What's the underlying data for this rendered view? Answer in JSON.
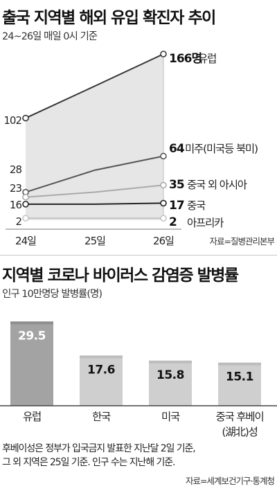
{
  "chart_data": [
    {
      "type": "line",
      "title": "출국 지역별 해외 유입 확진자 추이",
      "subtitle": "24~26일 매일 0시 기준",
      "source": "자료=질병관리본부",
      "categories": [
        "24일",
        "25일",
        "26일"
      ],
      "ylim": [
        0,
        175
      ],
      "series": [
        {
          "name": "유럽",
          "values": [
            102,
            134,
            166
          ],
          "start_label": "102",
          "end_label": "166명",
          "color": "#333333",
          "area": true,
          "area_color": "#e6e6e6"
        },
        {
          "name": "미주(미국등 북미)",
          "values": [
            28,
            50,
            64
          ],
          "start_label": "28",
          "end_label": "64",
          "color": "#555555"
        },
        {
          "name": "중국 외 아시아",
          "values": [
            23,
            28,
            35
          ],
          "start_label": "23",
          "end_label": "35",
          "color": "#aaaaaa"
        },
        {
          "name": "중국",
          "values": [
            16,
            16,
            17
          ],
          "start_label": "16",
          "end_label": "17",
          "color": "#222222"
        },
        {
          "name": "아프리카",
          "values": [
            2,
            2,
            2
          ],
          "start_label": "2",
          "end_label": "2",
          "color": "#c4c4c4"
        }
      ]
    },
    {
      "type": "bar",
      "title": "지역별 코로나 바이러스 감염증 발병률",
      "subtitle": "인구 10만명당 발병률(명)",
      "categories": [
        "유럽",
        "한국",
        "미국",
        "중국 후베이 (湖北)성"
      ],
      "category_lines": [
        [
          "유럽"
        ],
        [
          "한국"
        ],
        [
          "미국"
        ],
        [
          "중국 후베이",
          "(湖北)성"
        ]
      ],
      "values": [
        29.5,
        17.6,
        15.8,
        15.1
      ],
      "value_labels": [
        "29.5",
        "17.6",
        "15.8",
        "15.1"
      ],
      "ylim": [
        0,
        32
      ],
      "colors": {
        "highlight": "#a3a3a3",
        "highlight_label": "#ffffff",
        "normal": "#cfcfcf",
        "normal_label": "#111111"
      },
      "highlight_index": 0
    }
  ],
  "footnote": {
    "lines": [
      "후베이성은 정부가 입국금지 발표한 지난달 2일 기준,",
      "그 외 지역은 25일 기준. 인구 수는 지난해 기준."
    ],
    "source": "자료=세계보건기구·통계청"
  }
}
